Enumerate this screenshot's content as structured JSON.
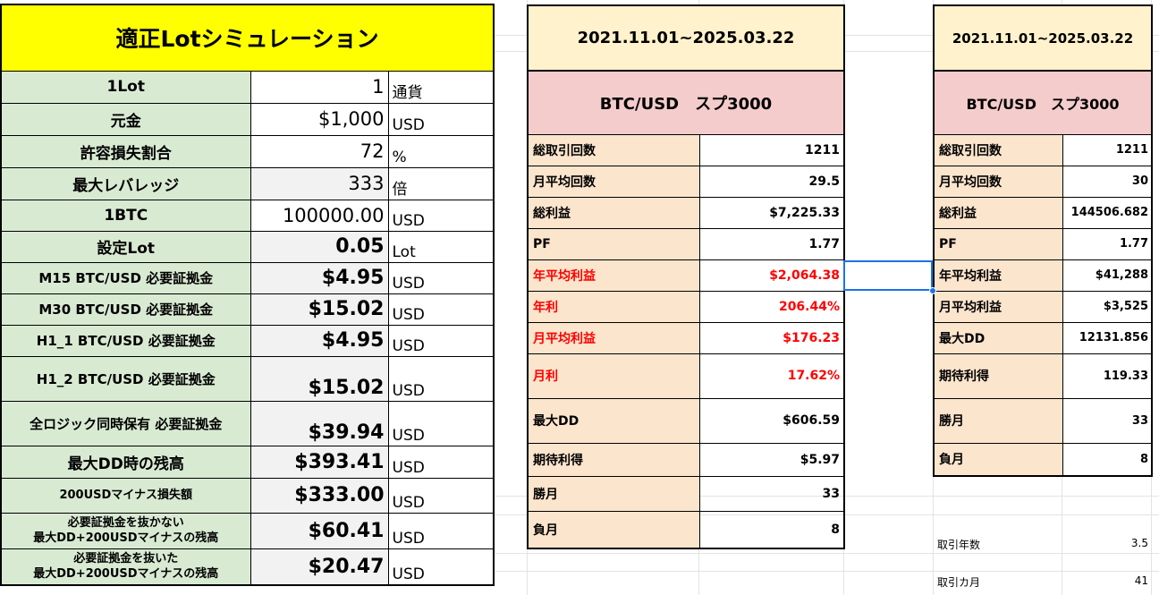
{
  "left": {
    "title": "適正Lotシミュレーション",
    "rows": [
      {
        "label": "1Lot",
        "value": "1",
        "unit": "通貨"
      },
      {
        "label": "元金",
        "value": "$1,000",
        "unit": "USD"
      },
      {
        "label": "許容損失割合",
        "value": "72",
        "unit": "%"
      },
      {
        "label": "最大レバレッジ",
        "value": "333",
        "unit": "倍"
      },
      {
        "label": "1BTC",
        "value": "100000.00",
        "unit": "USD"
      },
      {
        "label": "設定Lot",
        "value": "0.05",
        "unit": "Lot"
      },
      {
        "label": "M15 BTC/USD 必要証拠金",
        "value": "$4.95",
        "unit": "USD"
      },
      {
        "label": "M30 BTC/USD 必要証拠金",
        "value": "$15.02",
        "unit": "USD"
      },
      {
        "label": "H1_1 BTC/USD 必要証拠金",
        "value": "$4.95",
        "unit": "USD"
      },
      {
        "label": "H1_2 BTC/USD 必要証拠金",
        "value": "$15.02",
        "unit": "USD"
      },
      {
        "label": "全ロジック同時保有 必要証拠金",
        "value": "$39.94",
        "unit": "USD"
      },
      {
        "label": "最大DD時の残高",
        "value": "$393.41",
        "unit": "USD"
      },
      {
        "label": "200USDマイナス損失額",
        "value": "$333.00",
        "unit": "USD"
      },
      {
        "label_line1": "必要証拠金を抜かない",
        "label_line2": "最大DD+200USDマイナスの残高",
        "value": "$60.41",
        "unit": "USD"
      },
      {
        "label_line1": "必要証拠金を抜いた",
        "label_line2": "最大DD+200USDマイナスの残高",
        "value": "$20.47",
        "unit": "USD"
      }
    ]
  },
  "middle": {
    "period": "2021.11.01~2025.03.22",
    "pair": "BTC/USD　スプ3000",
    "rows": [
      {
        "label": "総取引回数",
        "value": "1211"
      },
      {
        "label": "月平均回数",
        "value": "29.5"
      },
      {
        "label": "総利益",
        "value": "$7,225.33"
      },
      {
        "label": "PF",
        "value": "1.77"
      },
      {
        "label": "年平均利益",
        "value": "$2,064.38"
      },
      {
        "label": "年利",
        "value": "206.44%"
      },
      {
        "label": "月平均利益",
        "value": "$176.23"
      },
      {
        "label": "月利",
        "value": "17.62%"
      },
      {
        "label": "最大DD",
        "value": "$606.59"
      },
      {
        "label": "期待利得",
        "value": "$5.97"
      },
      {
        "label": "勝月",
        "value": "33"
      },
      {
        "label": "負月",
        "value": "8"
      }
    ],
    "highlight_color": "#ff0000"
  },
  "right": {
    "period": "2021.11.01~2025.03.22",
    "pair": "BTC/USD　スプ3000",
    "rows": [
      {
        "label": "総取引回数",
        "value": "1211"
      },
      {
        "label": "月平均回数",
        "value": "30"
      },
      {
        "label": "総利益",
        "value": "144506.682"
      },
      {
        "label": "PF",
        "value": "1.77"
      },
      {
        "label": "年平均利益",
        "value": "$41,288"
      },
      {
        "label": "月平均利益",
        "value": "$3,525"
      },
      {
        "label": "最大DD",
        "value": "12131.856"
      },
      {
        "label": "期待利得",
        "value": "119.33"
      },
      {
        "label": "勝月",
        "value": "33"
      },
      {
        "label": "負月",
        "value": "8"
      }
    ],
    "extra": [
      {
        "label": "取引年数",
        "value": "3.5"
      },
      {
        "label": "取引カ月",
        "value": "41"
      }
    ]
  },
  "colors": {
    "title_bg": "#ffff00",
    "label_bg": "#d9ead3",
    "period_bg": "#fff2cc",
    "pair_bg": "#f4cccc",
    "metric_bg": "#fce5cd",
    "selection": "#1a73e8"
  }
}
